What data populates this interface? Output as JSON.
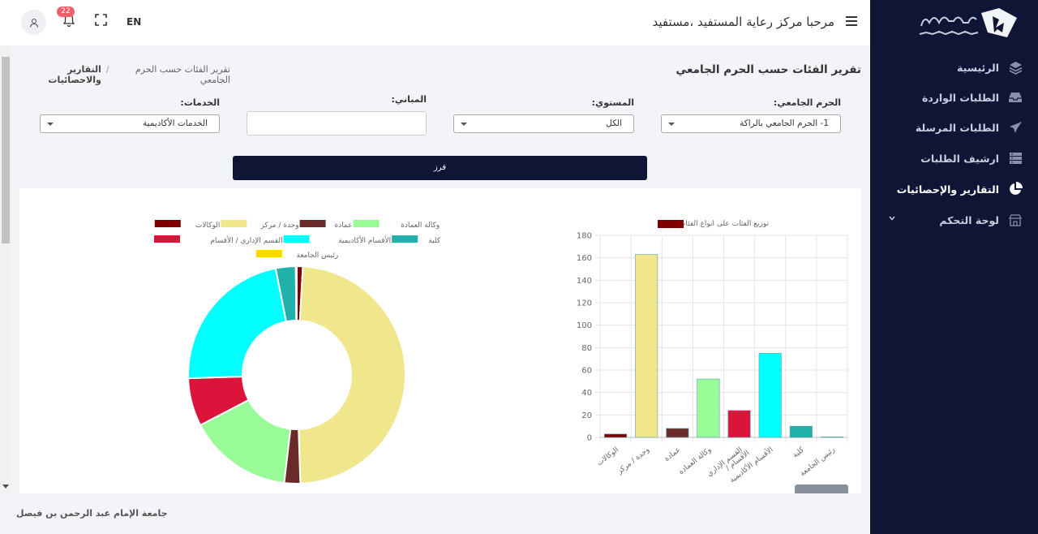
{
  "header": {
    "welcome": "مرحبا مركز رعاية المستفيد ،مستفيد",
    "lang": "EN",
    "notifications_count": "22"
  },
  "sidebar": {
    "items": [
      {
        "label": "الرئيسية",
        "icon": "layers-icon"
      },
      {
        "label": "الطلبات الواردة",
        "icon": "inbox-icon"
      },
      {
        "label": "الطلبات المرسلة",
        "icon": "send-icon"
      },
      {
        "label": "ارشيف الطلبات",
        "icon": "archive-icon"
      },
      {
        "label": "التقارير والإحصائيات",
        "icon": "pie-chart-icon",
        "active": true
      },
      {
        "label": "لوحة التحكم",
        "icon": "store-icon",
        "has_submenu": true
      }
    ]
  },
  "page": {
    "title": "تقرير الفئات حسب الحرم الجامعي",
    "breadcrumb": {
      "home": "التقارير والاحصائيات",
      "separator": "/",
      "current": "تقرير الفئات حسب الحرم الجامعي"
    }
  },
  "filters": {
    "campus_label": "الحرم الجامعي:",
    "campus_value": "1- الحرم الجامعي بالراكة",
    "level_label": "المستوي:",
    "level_value": "الكل",
    "buildings_label": "المباني:",
    "buildings_value": "",
    "services_label": "الخدمات:",
    "services_value": "الخدمات الأكاديمية",
    "sort_button": "فرز"
  },
  "footer": {
    "text": "جامعة الإمام عبد الرحمن بن فيصل"
  },
  "colors": {
    "sidebar_bg": "#0e1535",
    "accent_badge": "#ef5f6a"
  },
  "chart_data": [
    {
      "type": "pie",
      "subtype": "doughnut",
      "categories": [
        "الوكالات",
        "وحدة / مركز",
        "عمادة",
        "وكالة العمادة",
        "القسم الإداري / الأقسام",
        "الأقسام الأكاديمية",
        "كلية",
        "رئيس الجامعة"
      ],
      "values": [
        3,
        163,
        8,
        52,
        24,
        75,
        10,
        0.5
      ],
      "colors": [
        "#800000",
        "#f0e68c",
        "#6b2a2a",
        "#98fb98",
        "#dc143c",
        "#00ffff",
        "#20b2aa",
        "#ffd700"
      ],
      "legend": "top"
    },
    {
      "type": "bar",
      "series": [
        {
          "name": "توزيع الفئات على انواع الفئات",
          "values": [
            3,
            163,
            8,
            52,
            24,
            75,
            10,
            0.5
          ]
        }
      ],
      "categories": [
        "الوكالات",
        "وحدة / مركز",
        "عمادة",
        "وكالة العمادة",
        "القسم الإداري / الأقسام",
        "الأقسام الأكاديمية",
        "كلية",
        "رئيس الجامعة"
      ],
      "colors": [
        "#800000",
        "#f0e68c",
        "#6b2a2a",
        "#98fb98",
        "#dc143c",
        "#00ffff",
        "#20b2aa",
        "#ffd700"
      ],
      "ylim": [
        0,
        180
      ],
      "yticks": [
        "0",
        "20",
        "40",
        "60",
        "80",
        "100",
        "120",
        "140",
        "160",
        "180"
      ],
      "grid": true,
      "legend": "top"
    }
  ]
}
